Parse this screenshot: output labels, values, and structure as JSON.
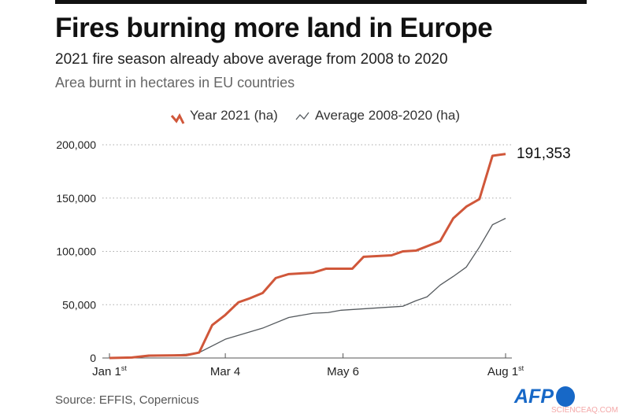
{
  "chart_data": {
    "type": "line",
    "title": "Fires burning more land in Europe",
    "subtitle": "2021 fire season already above average from 2008 to 2020",
    "description": "Area burnt in hectares in EU countries",
    "ylim": [
      0,
      200000
    ],
    "yticks": [
      "0",
      "50,000",
      "100,000",
      "150,000",
      "200,000"
    ],
    "ytick_values": [
      0,
      50000,
      100000,
      150000,
      200000
    ],
    "xticks": [
      {
        "label": "Jan 1",
        "sup": "st",
        "date": "Jan 1"
      },
      {
        "label": "Mar 4",
        "sup": "",
        "date": "Mar 4"
      },
      {
        "label": "May 6",
        "sup": "",
        "date": "May 6"
      },
      {
        "label": "Aug 1",
        "sup": "st",
        "date": "Aug 1"
      }
    ],
    "grid": true,
    "legend_position": "top",
    "end_label": "191,353",
    "series": [
      {
        "name": "Year 2021 (ha)",
        "color": "#d0573a",
        "x": [
          "Jan 1",
          "Jan 13",
          "Jan 22",
          "Feb 11",
          "Feb 18",
          "Feb 25",
          "Mar 4",
          "Mar 11",
          "Mar 17",
          "Mar 24",
          "Mar 31",
          "Apr 7",
          "Apr 20",
          "Apr 27",
          "May 11",
          "May 17",
          "Jun 1",
          "Jun 7",
          "Jun 14",
          "Jun 27",
          "Jul 4",
          "Jul 11",
          "Jul 18",
          "Jul 25",
          "Aug 1"
        ],
        "y": [
          0,
          500,
          2200,
          2600,
          5100,
          30900,
          40400,
          52200,
          55900,
          61000,
          75000,
          78700,
          80000,
          83800,
          83800,
          94900,
          96300,
          100000,
          100700,
          109600,
          131000,
          142000,
          149000,
          189700,
          191353
        ]
      },
      {
        "name": "Average 2008-2020 (ha)",
        "color": "#555a5e",
        "x": [
          "Jan 1",
          "Jan 22",
          "Feb 11",
          "Feb 18",
          "Mar 4",
          "Mar 24",
          "Apr 7",
          "Apr 20",
          "Apr 28",
          "May 5",
          "Jun 7",
          "Jun 14",
          "Jun 20",
          "Jun 27",
          "Jul 4",
          "Jul 11",
          "Jul 18",
          "Jul 25",
          "Aug 1"
        ],
        "y": [
          0,
          1500,
          3500,
          5100,
          17600,
          28000,
          38000,
          42000,
          42600,
          44800,
          48500,
          53700,
          57400,
          68400,
          76500,
          85300,
          104000,
          125000,
          131000
        ]
      }
    ]
  },
  "footer": {
    "source": "Source:  EFFIS, Copernicus",
    "logo": "AFP",
    "watermark": "SCIENCEAQ.COM"
  }
}
